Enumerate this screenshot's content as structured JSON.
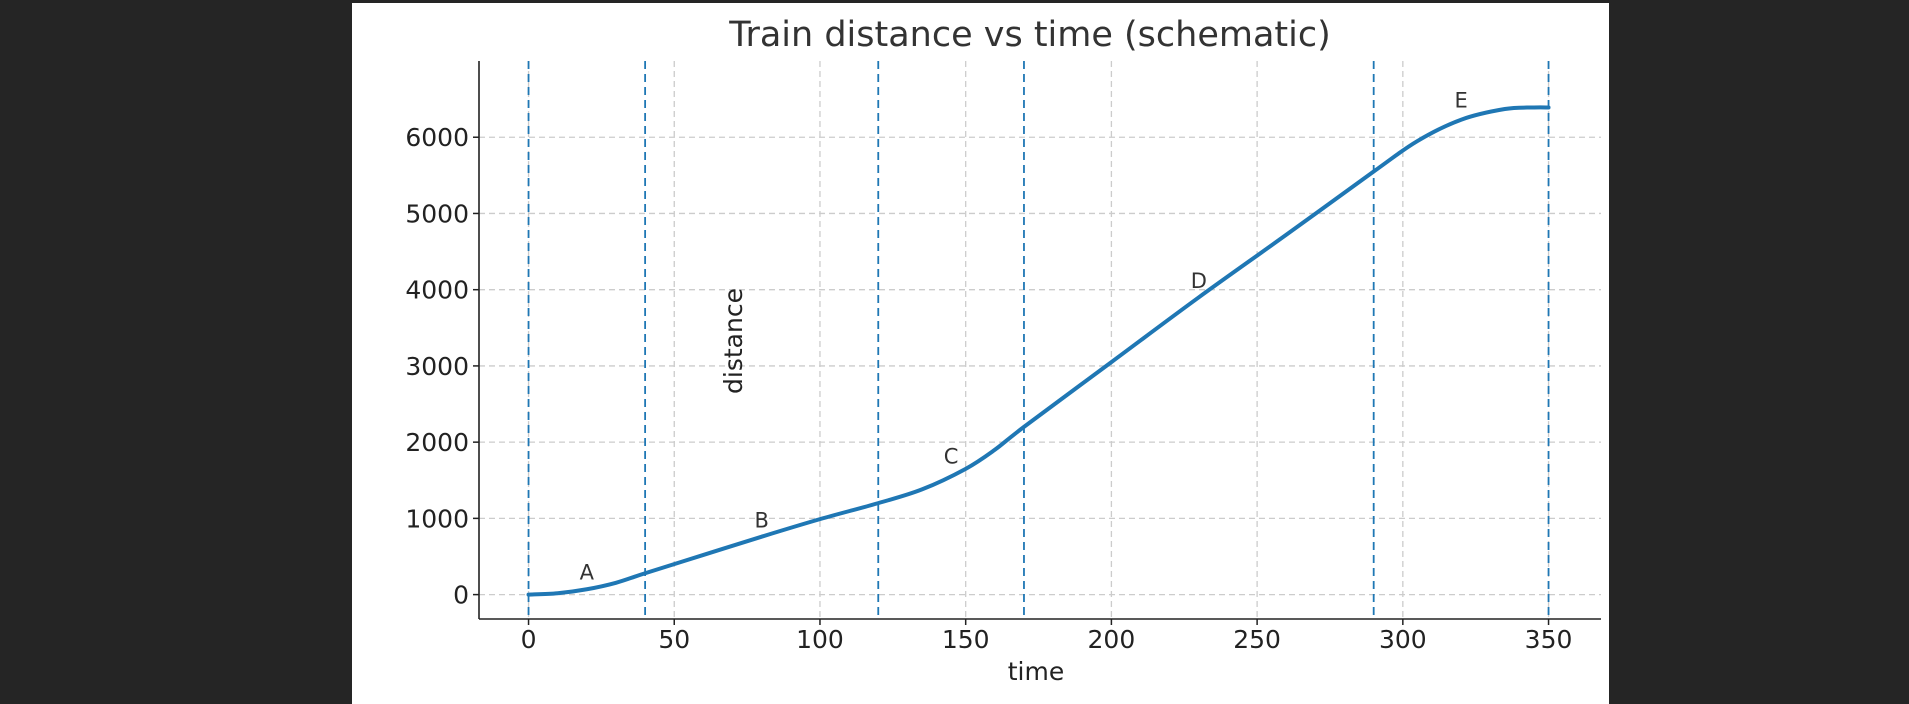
{
  "chart_data": {
    "type": "line",
    "title": "Train distance vs time (schematic)",
    "xlabel": "time",
    "ylabel": "distance",
    "xlim": [
      -17,
      368
    ],
    "ylim": [
      -320,
      7000
    ],
    "x_ticks": [
      0,
      50,
      100,
      150,
      200,
      250,
      300,
      350
    ],
    "y_ticks": [
      0,
      1000,
      2000,
      3000,
      4000,
      5000,
      6000
    ],
    "grid": true,
    "legend": "none",
    "line_color": "#1f77b4",
    "vlines": [
      0,
      40,
      120,
      170,
      290,
      350
    ],
    "series": [
      {
        "x": [
          0,
          10,
          20,
          30,
          40,
          60,
          80,
          100,
          120,
          135,
          150,
          160,
          170,
          200,
          230,
          260,
          290,
          305,
          320,
          335,
          345,
          350
        ],
        "y": [
          0,
          18,
          70,
          155,
          280,
          520,
          760,
          990,
          1200,
          1380,
          1650,
          1900,
          2200,
          3050,
          3900,
          4720,
          5550,
          5950,
          6230,
          6370,
          6390,
          6390
        ]
      }
    ],
    "annotations": [
      {
        "text": "A",
        "x": 20,
        "y": 200
      },
      {
        "text": "B",
        "x": 80,
        "y": 880
      },
      {
        "text": "C",
        "x": 145,
        "y": 1720
      },
      {
        "text": "D",
        "x": 230,
        "y": 4020
      },
      {
        "text": "E",
        "x": 320,
        "y": 6390
      }
    ]
  }
}
